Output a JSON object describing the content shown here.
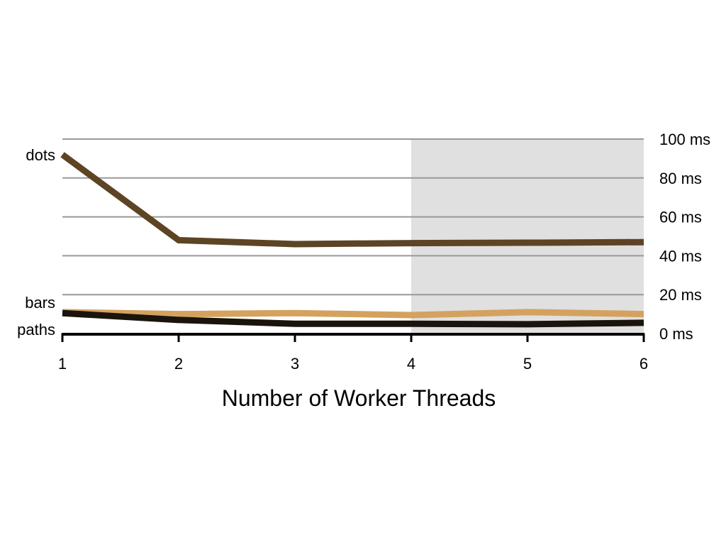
{
  "chart_data": {
    "type": "line",
    "xlabel": "Number of Worker Threads",
    "ylabel": "",
    "x": [
      1,
      2,
      3,
      4,
      5,
      6
    ],
    "xlim": [
      1,
      6
    ],
    "ylim": [
      0,
      100
    ],
    "y_tick_labels": [
      "0 ms",
      "20 ms",
      "40 ms",
      "60 ms",
      "80 ms",
      "100 ms"
    ],
    "y_ticks": [
      0,
      20,
      40,
      60,
      80,
      100
    ],
    "y_axis_position": "right",
    "grid": true,
    "shaded_region": {
      "x_start": 4,
      "x_end": 6,
      "color": "#e0e0e0"
    },
    "legend": "inline labels at left",
    "series": [
      {
        "name": "dots",
        "color": "#5c4424",
        "values": [
          92,
          48,
          46,
          46.5,
          46.7,
          47
        ]
      },
      {
        "name": "bars",
        "color": "#d4a25e",
        "values": [
          11,
          10,
          10.5,
          9.5,
          11,
          10
        ]
      },
      {
        "name": "paths",
        "color": "#1a140c",
        "values": [
          10.5,
          7,
          5,
          5,
          4.8,
          5.5
        ]
      }
    ]
  }
}
